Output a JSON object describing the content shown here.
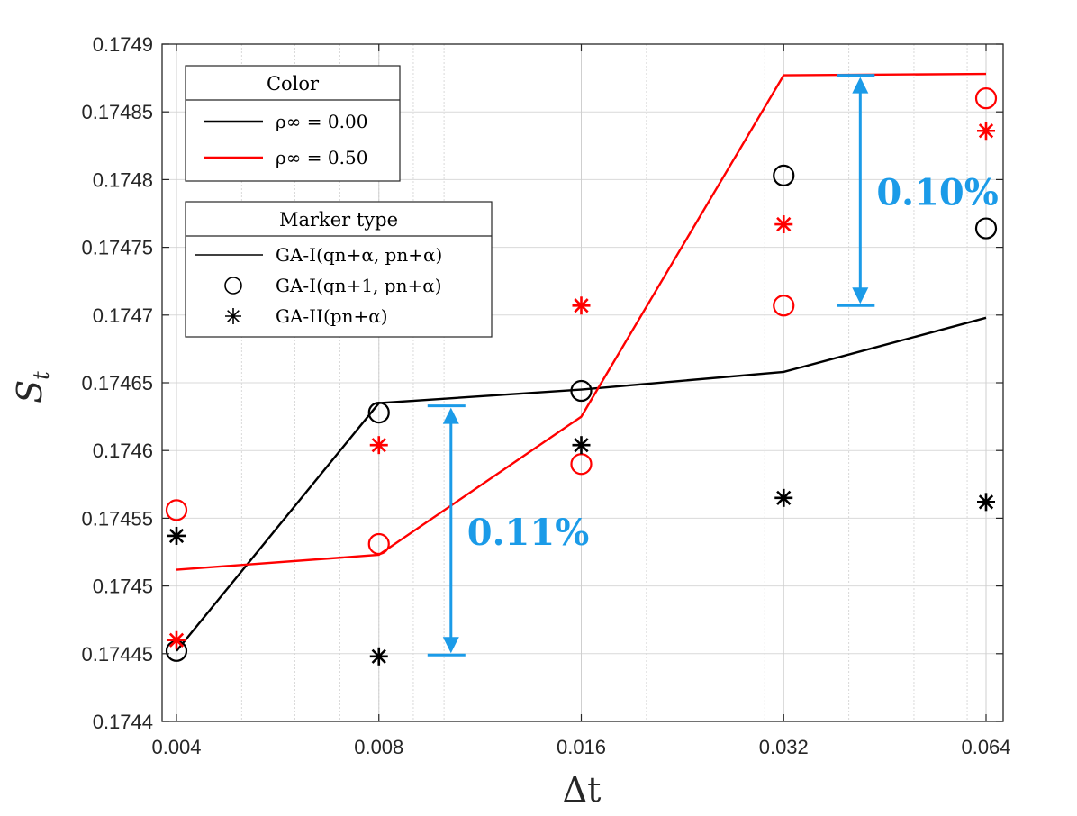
{
  "chart_data": {
    "type": "line",
    "title": "",
    "xlabel": "Δt",
    "ylabel": "S_t",
    "x_scale": "log",
    "x": [
      0.004,
      0.008,
      0.016,
      0.032,
      0.064
    ],
    "x_tick_labels": [
      "0.004",
      "0.008",
      "0.016",
      "0.032",
      "0.064"
    ],
    "ylim": [
      0.1744,
      0.1749
    ],
    "y_ticks": [
      0.1744,
      0.17445,
      0.1745,
      0.17455,
      0.1746,
      0.17465,
      0.1747,
      0.17475,
      0.1748,
      0.17485,
      0.1749
    ],
    "y_tick_labels": [
      "0.1744",
      "0.17445",
      "0.1745",
      "0.17455",
      "0.1746",
      "0.17465",
      "0.1747",
      "0.17475",
      "0.1748",
      "0.17485",
      "0.1749"
    ],
    "grid": true,
    "series": [
      {
        "name": "GA-I(q_{n+α}, p_{n+α}), ρ∞ = 0.00",
        "marker": "line",
        "color": "#000000",
        "values": [
          0.174452,
          0.174635,
          0.174645,
          0.174658,
          0.174698
        ]
      },
      {
        "name": "GA-I(q_{n+α}, p_{n+α}), ρ∞ = 0.50",
        "marker": "line",
        "color": "#ff0000",
        "values": [
          0.174512,
          0.174523,
          0.174625,
          0.174877,
          0.174878
        ]
      },
      {
        "name": "GA-I(q_{n+1}, p_{n+α}), ρ∞ = 0.00",
        "marker": "circle",
        "color": "#000000",
        "values": [
          0.174452,
          0.174628,
          0.174644,
          0.174803,
          0.174764
        ]
      },
      {
        "name": "GA-I(q_{n+1}, p_{n+α}), ρ∞ = 0.50",
        "marker": "circle",
        "color": "#ff0000",
        "values": [
          0.174556,
          0.174531,
          0.17459,
          0.174707,
          0.17486
        ]
      },
      {
        "name": "GA-II(p_{n+α}), ρ∞ = 0.00",
        "marker": "asterisk",
        "color": "#000000",
        "values": [
          0.174537,
          0.174448,
          0.174604,
          0.174565,
          0.174562
        ]
      },
      {
        "name": "GA-II(p_{n+α}), ρ∞ = 0.50",
        "marker": "asterisk",
        "color": "#ff0000",
        "values": [
          0.17446,
          0.174604,
          0.174707,
          0.174767,
          0.174836
        ]
      }
    ],
    "legend_color": {
      "title": "Color",
      "entries": [
        {
          "label": "ρ∞ = 0.00",
          "color": "#000000"
        },
        {
          "label": "ρ∞ = 0.50",
          "color": "#ff0000"
        }
      ]
    },
    "legend_marker": {
      "title": "Marker type",
      "entries": [
        {
          "label": "GA-I(qn+α, pn+α)",
          "marker": "line"
        },
        {
          "label": "GA-I(qn+1, pn+α)",
          "marker": "circle"
        },
        {
          "label": "GA-II(pn+α)",
          "marker": "asterisk"
        }
      ]
    },
    "legend_placement": "top-left",
    "annotations": [
      {
        "text": "0.11%",
        "x": 0.008,
        "x_ratio": 1.28,
        "y_top": 0.174633,
        "y_bottom": 0.174449,
        "color": "#1b9be8"
      },
      {
        "text": "0.10%",
        "x": 0.032,
        "x_ratio": 1.3,
        "y_top": 0.174877,
        "y_bottom": 0.174707,
        "color": "#1b9be8"
      }
    ]
  }
}
